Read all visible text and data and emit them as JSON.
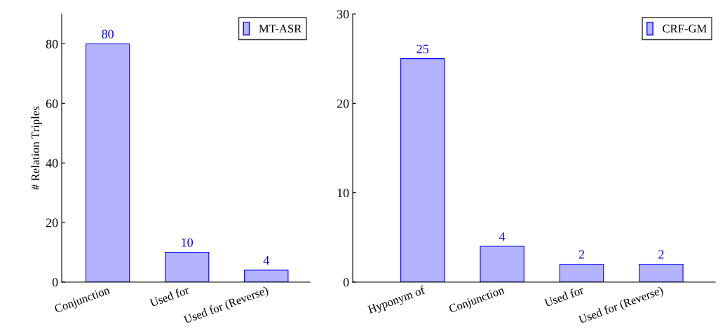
{
  "chart_data": [
    {
      "type": "bar",
      "ylabel": "# Relation Triples",
      "categories": [
        "Conjunction",
        "Used for",
        "Used for (Reverse)"
      ],
      "series": [
        {
          "name": "MT-ASR",
          "color": "#b3b3ff",
          "values": [
            80,
            10,
            4
          ]
        }
      ],
      "ylim": [
        0,
        90
      ],
      "yticks": [
        0,
        20,
        40,
        60,
        80
      ],
      "data_labels": true,
      "legend": "top right",
      "grid": false
    },
    {
      "type": "bar",
      "categories": [
        "Hyponym of",
        "Conjunction",
        "Used for",
        "Used for (Reverse)"
      ],
      "series": [
        {
          "name": "CRF-GM",
          "color": "#b3b3ff",
          "values": [
            25,
            4,
            2,
            2
          ]
        }
      ],
      "ylim": [
        0,
        30
      ],
      "yticks": [
        0,
        10,
        20,
        30
      ],
      "data_labels": true,
      "legend": "top right",
      "grid": false
    }
  ]
}
